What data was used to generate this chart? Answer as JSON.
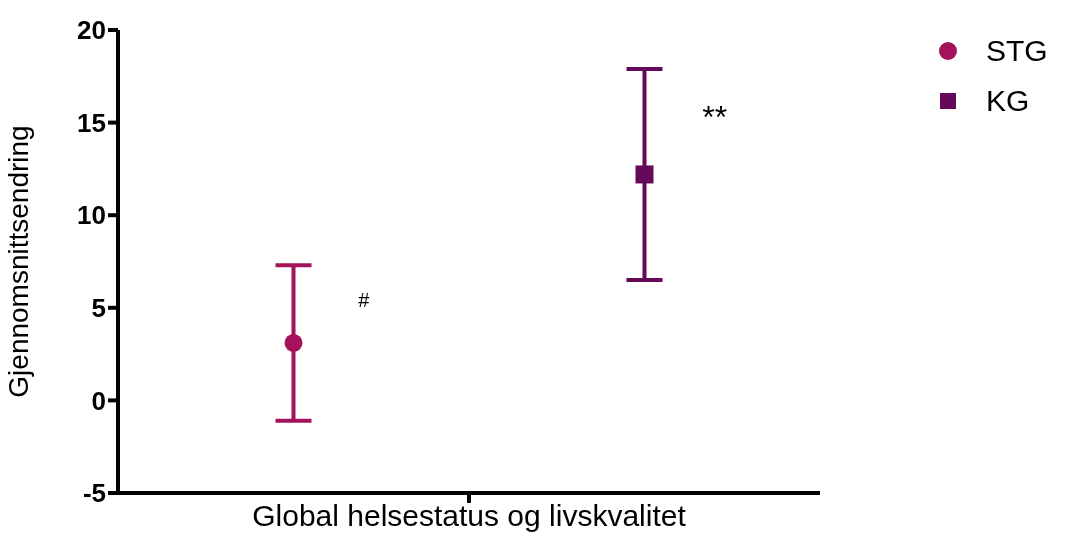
{
  "chart_data": {
    "type": "scatter",
    "categories": [
      "Global helsestatus og livskvalitet"
    ],
    "ylabel": "Gjennomsnittsendring",
    "ylim": [
      -5,
      20
    ],
    "yticks": [
      -5,
      0,
      5,
      10,
      15,
      20
    ],
    "grid": false,
    "legend": "top right",
    "series": [
      {
        "name": "STG",
        "color": "#a3125a",
        "marker": "circle",
        "values": [
          3.1
        ],
        "errors": [
          [
            -1.1,
            7.3
          ]
        ]
      },
      {
        "name": "KG",
        "color": "#650a5a",
        "marker": "square",
        "values": [
          12.2
        ],
        "errors": [
          [
            6.5,
            17.9
          ]
        ]
      }
    ],
    "annotations": [
      "#",
      "**"
    ]
  }
}
